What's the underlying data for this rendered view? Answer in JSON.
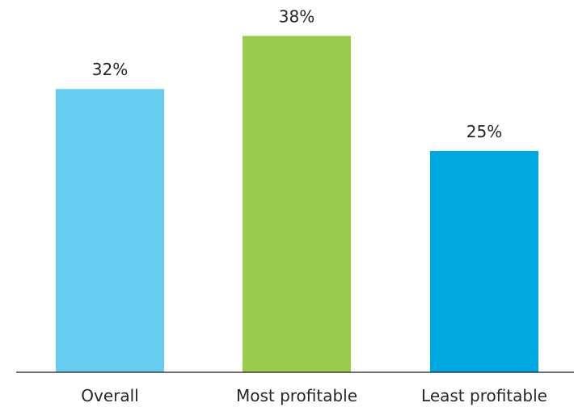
{
  "chart_data": {
    "type": "bar",
    "categories": [
      "Overall",
      "Most profitable",
      "Least profitable"
    ],
    "values": [
      32,
      38,
      25
    ],
    "value_labels": [
      "32%",
      "38%",
      "25%"
    ],
    "colors": [
      "#66ccf0",
      "#99cc4d",
      "#00a8e1"
    ],
    "title": "",
    "xlabel": "",
    "ylabel": "",
    "ylim": [
      0,
      41.6
    ],
    "grid": false,
    "legend": "none"
  }
}
